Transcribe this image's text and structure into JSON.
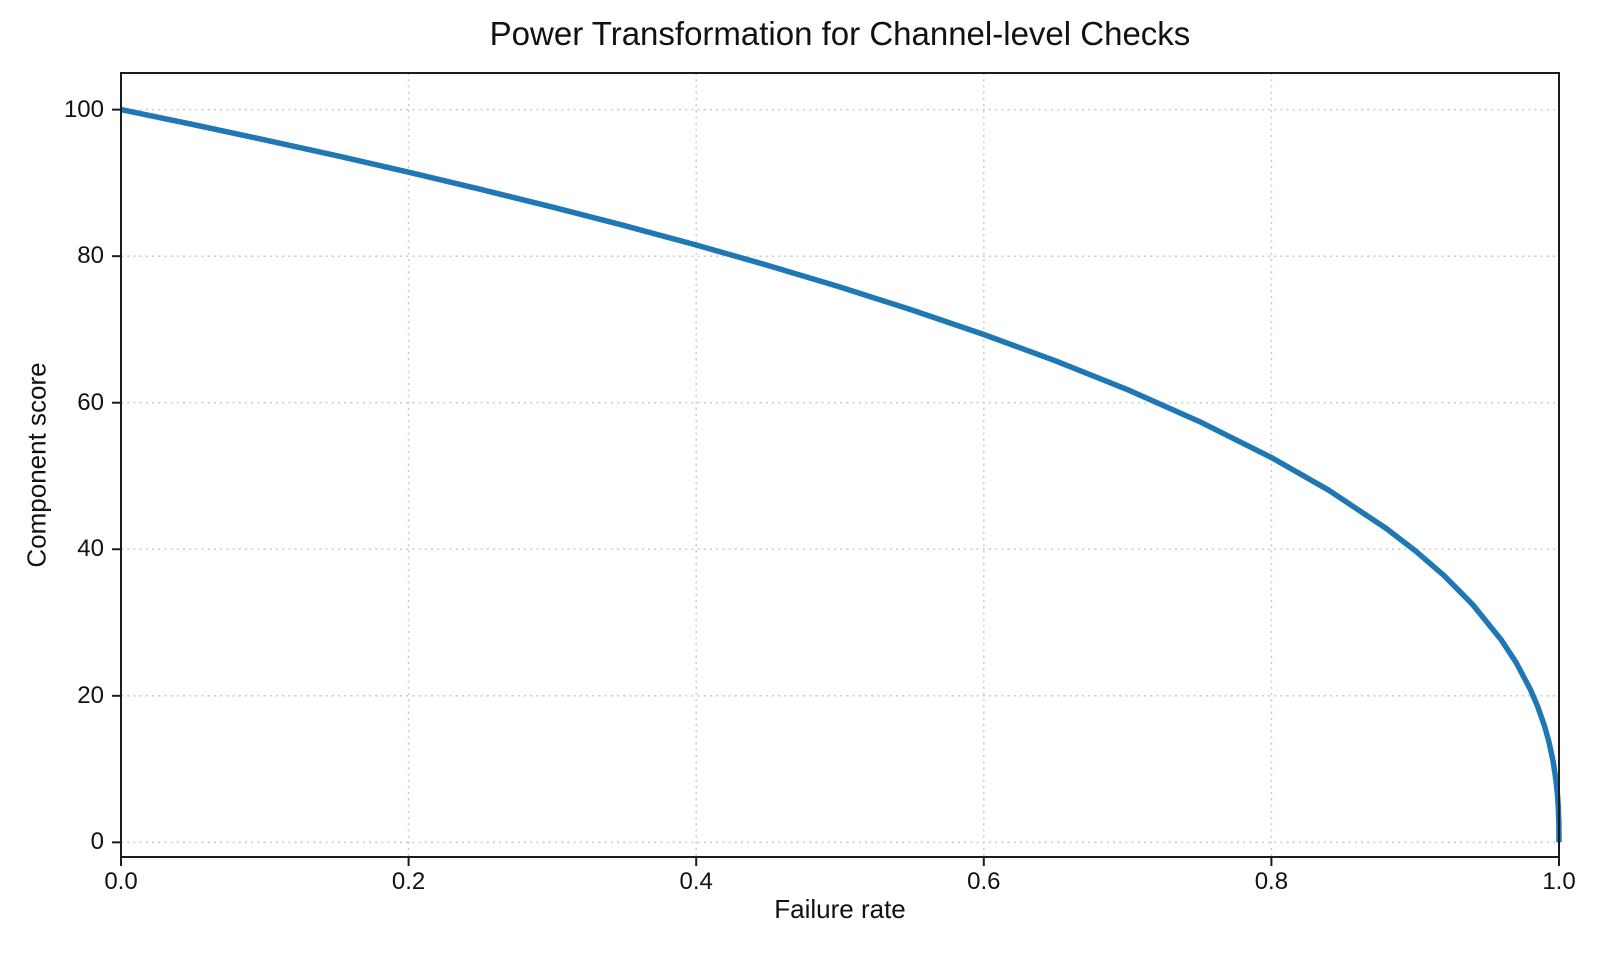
{
  "figure": {
    "title": "Power Transformation for Channel-level Checks",
    "xlabel": "Failure rate",
    "ylabel": "Component score"
  },
  "colors": {
    "line": "#1f77b4",
    "text": "#111111",
    "spine": "#1c1c1c",
    "grid": "#cccccc",
    "background": "#ffffff"
  },
  "chart_data": {
    "type": "line",
    "title": "Power Transformation for Channel-level Checks",
    "xlabel": "Failure rate",
    "ylabel": "Component score",
    "xlim": [
      0,
      1
    ],
    "ylim": [
      -2,
      105
    ],
    "x_ticks": [
      0.0,
      0.2,
      0.4,
      0.6,
      0.8,
      1.0
    ],
    "x_tick_labels": [
      "0.0",
      "0.2",
      "0.4",
      "0.6",
      "0.8",
      "1.0"
    ],
    "y_ticks": [
      0,
      20,
      40,
      60,
      80,
      100
    ],
    "y_tick_labels": [
      "0",
      "20",
      "40",
      "60",
      "80",
      "100"
    ],
    "grid": "dotted-both-axes",
    "legend": "none",
    "series": [
      {
        "name": "component-score-curve",
        "color": "#1f77b4",
        "line_width": 5.5,
        "formula": "score = 100 * (1 - failure_rate)^0.4",
        "points": [
          [
            0.0,
            100.0
          ],
          [
            0.02,
            99.19
          ],
          [
            0.05,
            97.97
          ],
          [
            0.1,
            95.87
          ],
          [
            0.15,
            93.71
          ],
          [
            0.2,
            91.46
          ],
          [
            0.25,
            89.13
          ],
          [
            0.3,
            86.7
          ],
          [
            0.35,
            84.17
          ],
          [
            0.4,
            81.52
          ],
          [
            0.45,
            78.73
          ],
          [
            0.5,
            75.79
          ],
          [
            0.55,
            72.66
          ],
          [
            0.6,
            69.31
          ],
          [
            0.65,
            65.71
          ],
          [
            0.7,
            61.78
          ],
          [
            0.75,
            57.43
          ],
          [
            0.8,
            52.53
          ],
          [
            0.84,
            48.05
          ],
          [
            0.88,
            42.82
          ],
          [
            0.9,
            39.81
          ],
          [
            0.92,
            36.41
          ],
          [
            0.94,
            32.45
          ],
          [
            0.96,
            27.59
          ],
          [
            0.97,
            24.6
          ],
          [
            0.98,
            20.91
          ],
          [
            0.985,
            18.64
          ],
          [
            0.99,
            15.85
          ],
          [
            0.993,
            13.74
          ],
          [
            0.996,
            10.99
          ],
          [
            0.998,
            8.33
          ],
          [
            0.999,
            6.31
          ],
          [
            0.9995,
            4.78
          ],
          [
            0.9999,
            2.51
          ],
          [
            1.0,
            0.0
          ]
        ]
      }
    ]
  }
}
